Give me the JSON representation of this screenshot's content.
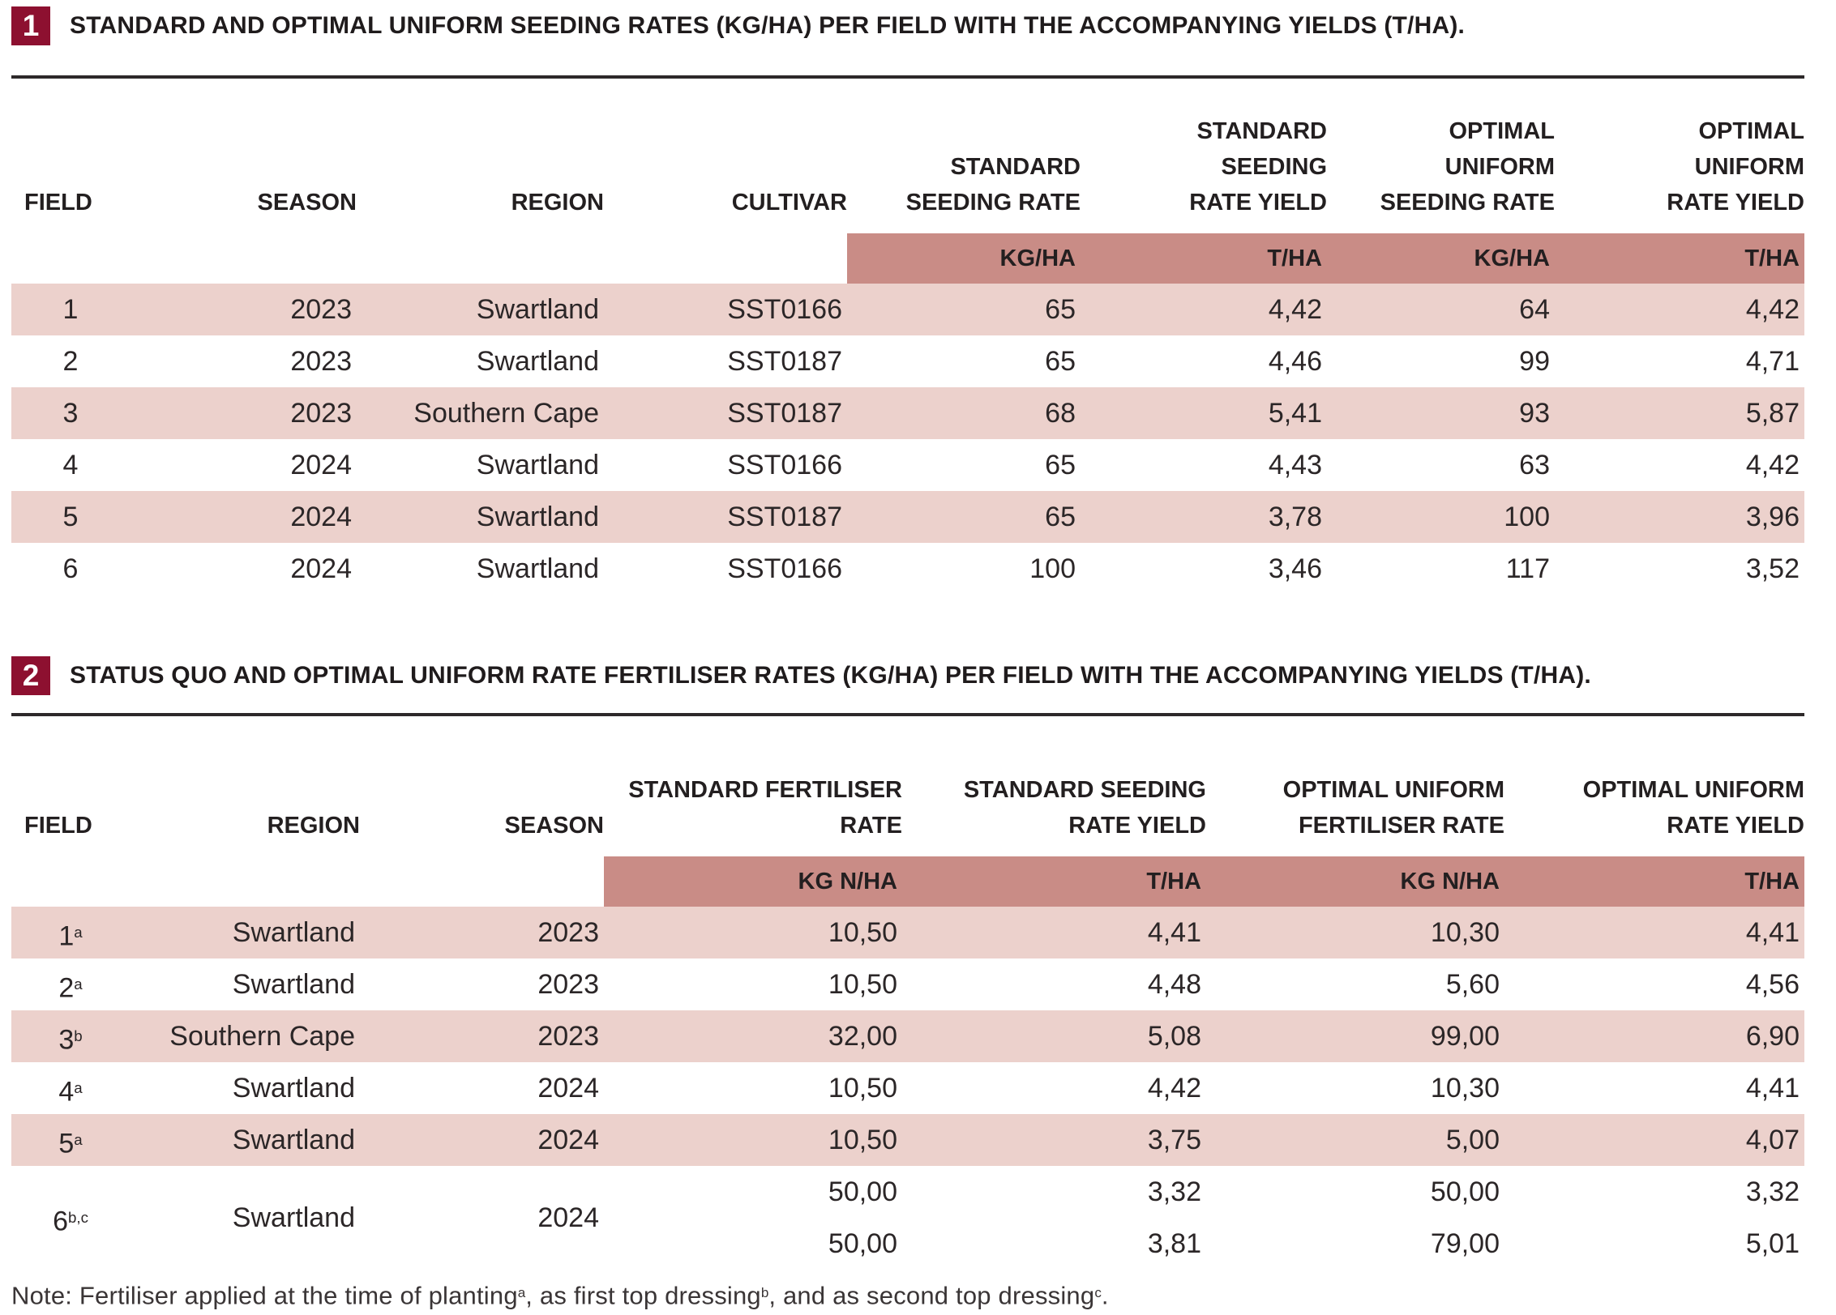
{
  "table1": {
    "number": "1",
    "title": "STANDARD AND OPTIMAL UNIFORM SEEDING RATES (KG/HA) PER FIELD WITH THE ACCOMPANYING YIELDS (T/HA).",
    "columns": {
      "field": "FIELD",
      "season": "SEASON",
      "region": "REGION",
      "cultivar": "CULTIVAR",
      "std_rate": "STANDARD\nSEEDING RATE",
      "std_yield": "STANDARD\nSEEDING\nRATE YIELD",
      "opt_rate": "OPTIMAL\nUNIFORM\nSEEDING RATE",
      "opt_yield": "OPTIMAL\nUNIFORM\nRATE YIELD"
    },
    "units": [
      "KG/HA",
      "T/HA",
      "KG/HA",
      "T/HA"
    ],
    "rows": [
      {
        "field": "1",
        "season": "2023",
        "region": "Swartland",
        "cultivar": "SST0166",
        "std_rate": "65",
        "std_yield": "4,42",
        "opt_rate": "64",
        "opt_yield": "4,42"
      },
      {
        "field": "2",
        "season": "2023",
        "region": "Swartland",
        "cultivar": "SST0187",
        "std_rate": "65",
        "std_yield": "4,46",
        "opt_rate": "99",
        "opt_yield": "4,71"
      },
      {
        "field": "3",
        "season": "2023",
        "region": "Southern Cape",
        "cultivar": "SST0187",
        "std_rate": "68",
        "std_yield": "5,41",
        "opt_rate": "93",
        "opt_yield": "5,87"
      },
      {
        "field": "4",
        "season": "2024",
        "region": "Swartland",
        "cultivar": "SST0166",
        "std_rate": "65",
        "std_yield": "4,43",
        "opt_rate": "63",
        "opt_yield": "4,42"
      },
      {
        "field": "5",
        "season": "2024",
        "region": "Swartland",
        "cultivar": "SST0187",
        "std_rate": "65",
        "std_yield": "3,78",
        "opt_rate": "100",
        "opt_yield": "3,96"
      },
      {
        "field": "6",
        "season": "2024",
        "region": "Swartland",
        "cultivar": "SST0166",
        "std_rate": "100",
        "std_yield": "3,46",
        "opt_rate": "117",
        "opt_yield": "3,52"
      }
    ]
  },
  "table2": {
    "number": "2",
    "title": "STATUS QUO AND OPTIMAL UNIFORM RATE FERTILISER RATES (KG/HA) PER FIELD WITH THE ACCOMPANYING YIELDS (T/HA).",
    "columns": {
      "field": "FIELD",
      "region": "REGION",
      "season": "SEASON",
      "std_fert": "STANDARD FERTILISER\nRATE",
      "std_yield": "STANDARD SEEDING\nRATE YIELD",
      "opt_fert": "OPTIMAL UNIFORM\nFERTILISER RATE",
      "opt_yield": "OPTIMAL UNIFORM\nRATE YIELD"
    },
    "units": [
      "KG N/HA",
      "T/HA",
      "KG N/HA",
      "T/HA"
    ],
    "rows": [
      {
        "field": "1",
        "field_sup": "a",
        "region": "Swartland",
        "season": "2023",
        "std_fert": "10,50",
        "std_yield": "4,41",
        "opt_fert": "10,30",
        "opt_yield": "4,41"
      },
      {
        "field": "2",
        "field_sup": "a",
        "region": "Swartland",
        "season": "2023",
        "std_fert": "10,50",
        "std_yield": "4,48",
        "opt_fert": "5,60",
        "opt_yield": "4,56"
      },
      {
        "field": "3",
        "field_sup": "b",
        "region": "Southern Cape",
        "season": "2023",
        "std_fert": "32,00",
        "std_yield": "5,08",
        "opt_fert": "99,00",
        "opt_yield": "6,90"
      },
      {
        "field": "4",
        "field_sup": "a",
        "region": "Swartland",
        "season": "2024",
        "std_fert": "10,50",
        "std_yield": "4,42",
        "opt_fert": "10,30",
        "opt_yield": "4,41"
      },
      {
        "field": "5",
        "field_sup": "a",
        "region": "Swartland",
        "season": "2024",
        "std_fert": "10,50",
        "std_yield": "3,75",
        "opt_fert": "5,00",
        "opt_yield": "4,07"
      }
    ],
    "row6": {
      "field": "6",
      "field_sup": "b,c",
      "region": "Swartland",
      "season": "2024",
      "lines": [
        {
          "std_fert": "50,00",
          "std_yield": "3,32",
          "opt_fert": "50,00",
          "opt_yield": "3,32"
        },
        {
          "std_fert": "50,00",
          "std_yield": "3,81",
          "opt_fert": "79,00",
          "opt_yield": "5,01"
        }
      ]
    }
  },
  "note": {
    "p1": "Note: Fertiliser applied at the time of planting",
    "s1": "a",
    "p2": ", as first top dressing",
    "s2": "b",
    "p3": ", and as second top dressing",
    "s3": "c",
    "p4": "."
  },
  "colors": {
    "badge_maroon": "#8d1030",
    "unit_band": "#c98c86",
    "row_pink": "#ecd1cc",
    "rule_dark": "#2d292a",
    "text_dark": "#231f20"
  },
  "chart_data": [
    {
      "type": "table",
      "title": "STANDARD AND OPTIMAL UNIFORM SEEDING RATES (KG/HA) PER FIELD WITH THE ACCOMPANYING YIELDS (T/HA).",
      "columns": [
        "FIELD",
        "SEASON",
        "REGION",
        "CULTIVAR",
        "STANDARD SEEDING RATE (KG/HA)",
        "STANDARD SEEDING RATE YIELD (T/HA)",
        "OPTIMAL UNIFORM SEEDING RATE (KG/HA)",
        "OPTIMAL UNIFORM RATE YIELD (T/HA)"
      ],
      "rows": [
        [
          "1",
          "2023",
          "Swartland",
          "SST0166",
          "65",
          "4,42",
          "64",
          "4,42"
        ],
        [
          "2",
          "2023",
          "Swartland",
          "SST0187",
          "65",
          "4,46",
          "99",
          "4,71"
        ],
        [
          "3",
          "2023",
          "Southern Cape",
          "SST0187",
          "68",
          "5,41",
          "93",
          "5,87"
        ],
        [
          "4",
          "2024",
          "Swartland",
          "SST0166",
          "65",
          "4,43",
          "63",
          "4,42"
        ],
        [
          "5",
          "2024",
          "Swartland",
          "SST0187",
          "65",
          "3,78",
          "100",
          "3,96"
        ],
        [
          "6",
          "2024",
          "Swartland",
          "SST0166",
          "100",
          "3,46",
          "117",
          "3,52"
        ]
      ]
    },
    {
      "type": "table",
      "title": "STATUS QUO AND OPTIMAL UNIFORM RATE FERTILISER RATES (KG/HA) PER FIELD WITH THE ACCOMPANYING YIELDS (T/HA).",
      "columns": [
        "FIELD",
        "REGION",
        "SEASON",
        "STANDARD FERTILISER RATE (KG N/HA)",
        "STANDARD SEEDING RATE YIELD (T/HA)",
        "OPTIMAL UNIFORM FERTILISER RATE (KG N/HA)",
        "OPTIMAL UNIFORM RATE YIELD (T/HA)"
      ],
      "rows": [
        [
          "1a",
          "Swartland",
          "2023",
          "10,50",
          "4,41",
          "10,30",
          "4,41"
        ],
        [
          "2a",
          "Swartland",
          "2023",
          "10,50",
          "4,48",
          "5,60",
          "4,56"
        ],
        [
          "3b",
          "Southern Cape",
          "2023",
          "32,00",
          "5,08",
          "99,00",
          "6,90"
        ],
        [
          "4a",
          "Swartland",
          "2024",
          "10,50",
          "4,42",
          "10,30",
          "4,41"
        ],
        [
          "5a",
          "Swartland",
          "2024",
          "10,50",
          "3,75",
          "5,00",
          "4,07"
        ],
        [
          "6b,c",
          "Swartland",
          "2024",
          "50,00 / 50,00",
          "3,32 / 3,81",
          "50,00 / 79,00",
          "3,32 / 5,01"
        ]
      ]
    }
  ]
}
